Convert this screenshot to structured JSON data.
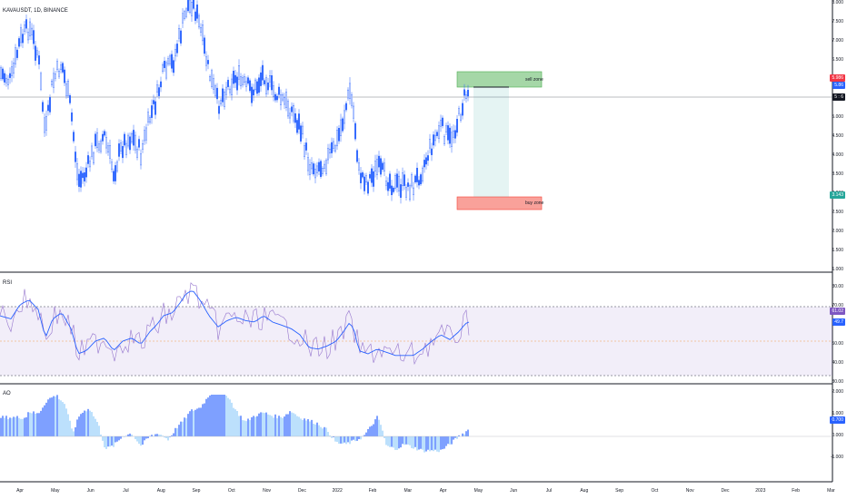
{
  "symbol_label": "KAVAUSDT, 1D, BINANCE",
  "rsi_label": "RSI",
  "ao_label": "AO",
  "zones": {
    "sell": "sell zone",
    "buy": "buy zone"
  },
  "price_axis": [
    "8.000",
    "7.500",
    "7.000",
    "6.500",
    "6.000",
    "5.500",
    "5.000",
    "4.500",
    "4.000",
    "3.500",
    "3.000",
    "2.500",
    "2.000",
    "1.500",
    "1.000"
  ],
  "price_badges": {
    "top": "5.986",
    "last": "5.86",
    "countdown": "5 : 6",
    "low": "3.143"
  },
  "rsi_axis": [
    "80.00",
    "70.00",
    "60.00",
    "50.00",
    "40.00",
    "30.00"
  ],
  "rsi_badges": {
    "a": "61.02",
    "b": "49.7"
  },
  "ao_axis": [
    "2.000",
    "1.000",
    "0.000",
    "-1.000"
  ],
  "ao_badge": "0.700",
  "time_axis": [
    "Apr",
    "May",
    "Jun",
    "Jul",
    "Aug",
    "Sep",
    "Oct",
    "Nov",
    "Dec",
    "2022",
    "Feb",
    "Mar",
    "Apr",
    "May",
    "Jun",
    "Jul",
    "Aug",
    "Sep",
    "Oct",
    "Nov",
    "Dec",
    "2023",
    "Feb",
    "Mar"
  ],
  "colors": {
    "candle": "#2962ff",
    "rsi_band": "#7e57c2",
    "ao_up": "#2962ff",
    "ao_down": "#90caf9",
    "sell_zone": "#4caf50",
    "buy_zone": "#f44336"
  }
}
